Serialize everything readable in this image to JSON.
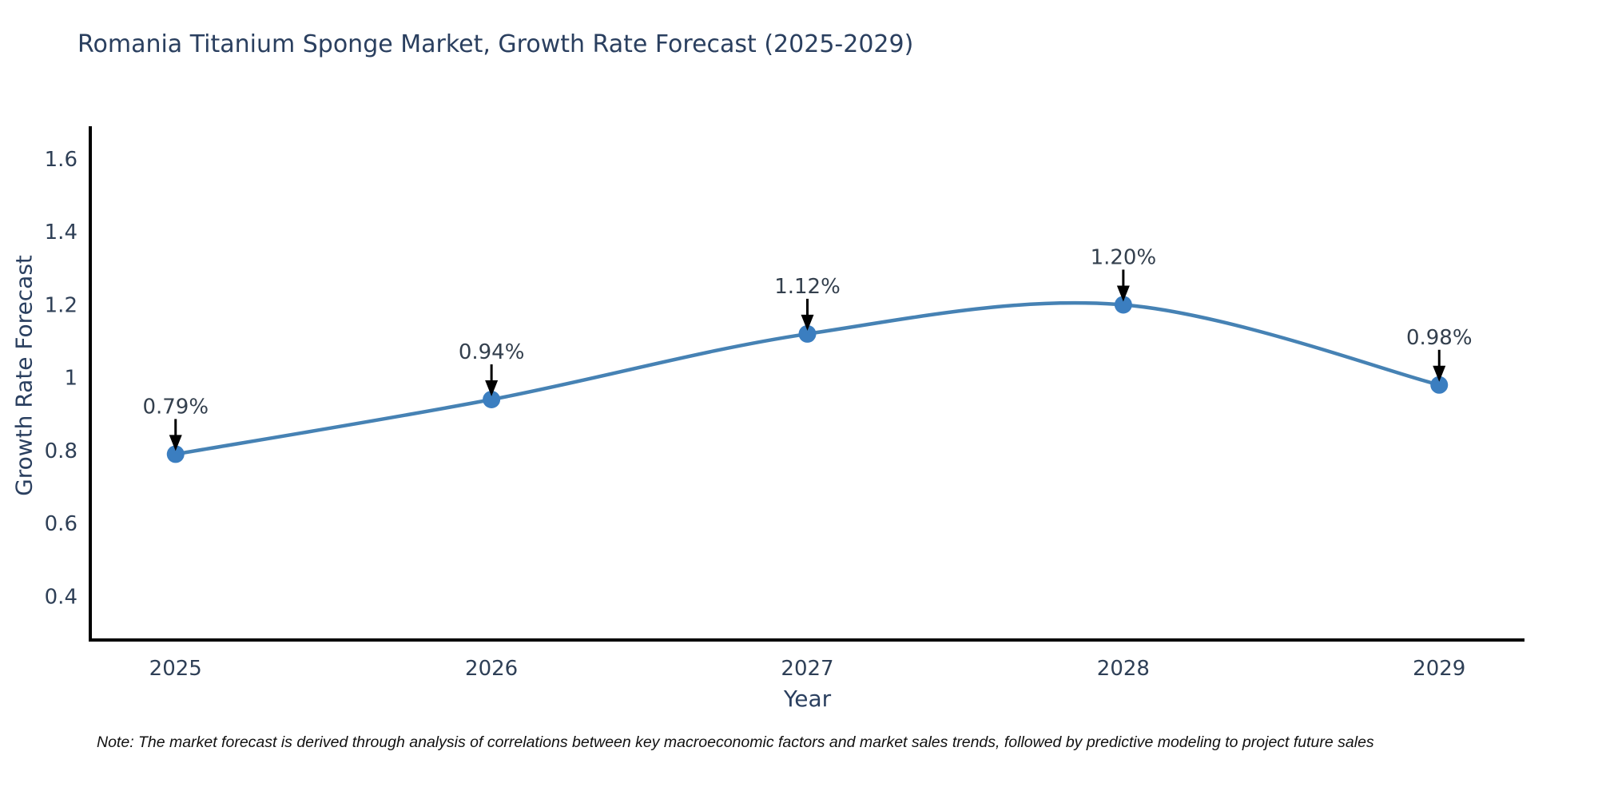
{
  "note": "Note: The market forecast is derived through analysis of correlations between key macroeconomic factors and market sales trends, followed by predictive modeling to project future sales",
  "chart_data": {
    "type": "line",
    "title": "Romania Titanium Sponge Market, Growth Rate Forecast (2025-2029)",
    "xlabel": "Year",
    "ylabel": "Growth Rate Forecast",
    "x": [
      2025,
      2026,
      2027,
      2028,
      2029
    ],
    "series": [
      {
        "name": "Growth Rate Forecast",
        "values": [
          0.79,
          0.94,
          1.12,
          1.2,
          0.98
        ]
      }
    ],
    "point_labels": [
      "0.79%",
      "0.94%",
      "1.12%",
      "1.20%",
      "0.98%"
    ],
    "xtick_labels": [
      "2025",
      "2026",
      "2027",
      "2028",
      "2029"
    ],
    "yticks": [
      0.4,
      0.6,
      0.8,
      1,
      1.2,
      1.4,
      1.6
    ],
    "ytick_labels": [
      "0.4",
      "0.6",
      "0.8",
      "1",
      "1.2",
      "1.4",
      "1.6"
    ],
    "xlim": [
      2024.73,
      2029.27
    ],
    "ylim": [
      0.28,
      1.69
    ],
    "grid": false,
    "legend": "none",
    "line_style": "spline",
    "annotation_arrows": true,
    "colors": {
      "line": "#4682b4",
      "marker": "#3b7ec0",
      "axis": "#000000",
      "arrow": "#000000",
      "text": "#2e3f56",
      "annotation_text": "#333f4d",
      "title_text": "#2a3f5f",
      "note_text": "#111111"
    }
  }
}
